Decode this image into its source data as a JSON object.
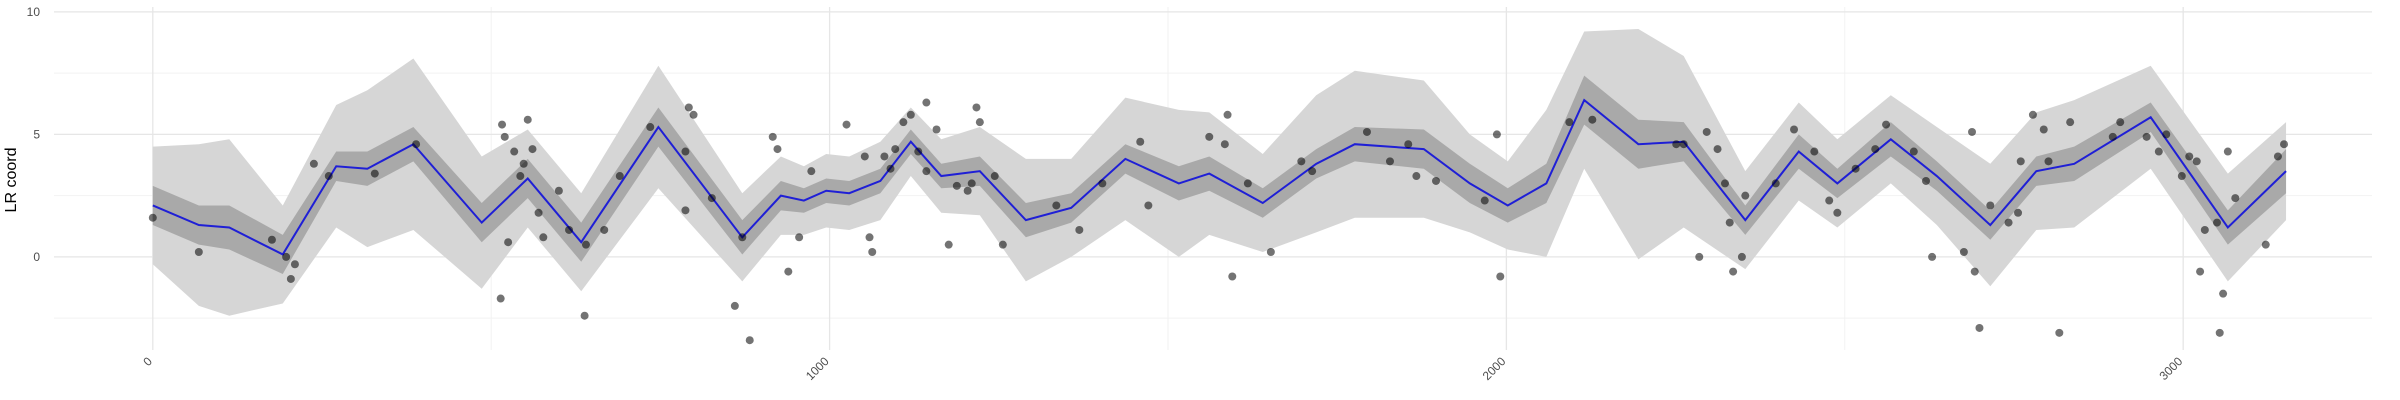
{
  "chart_data": {
    "type": "scatter",
    "y_label": "LR coord",
    "xlim": [
      -146,
      3279
    ],
    "ylim": [
      -3.8,
      10.2
    ],
    "xticks": [
      0,
      1000,
      2000,
      3000
    ],
    "yticks": [
      0,
      5,
      10
    ],
    "x_minor_ticks": [
      500,
      1500,
      2500
    ],
    "y_minor_ticks": [
      -2.5,
      2.5,
      7.5
    ],
    "grid": true,
    "smooth": {
      "color": "#1f1fd6",
      "x": [
        0,
        68,
        113,
        192,
        271,
        317,
        385,
        486,
        554,
        633,
        747,
        871,
        928,
        962,
        995,
        1029,
        1075,
        1120,
        1165,
        1222,
        1290,
        1357,
        1437,
        1516,
        1561,
        1640,
        1719,
        1776,
        1878,
        1946,
        2002,
        2059,
        2115,
        2195,
        2262,
        2353,
        2432,
        2489,
        2568,
        2636,
        2715,
        2783,
        2839,
        2952,
        3066,
        3152
      ],
      "mean": [
        2.1,
        1.3,
        1.2,
        0.1,
        3.7,
        3.6,
        4.6,
        1.4,
        3.2,
        0.6,
        5.3,
        0.8,
        2.5,
        2.3,
        2.7,
        2.6,
        3.1,
        4.7,
        3.3,
        3.5,
        1.5,
        2.0,
        4.0,
        3.0,
        3.4,
        2.2,
        3.8,
        4.6,
        4.4,
        3.0,
        2.1,
        3.0,
        6.4,
        4.6,
        4.7,
        1.5,
        4.3,
        3.0,
        4.8,
        3.3,
        1.3,
        3.5,
        3.8,
        5.7,
        1.2,
        3.5
      ],
      "outer_color": "#d6d6d6",
      "outer_lower": [
        -0.3,
        -2.0,
        -2.4,
        -1.9,
        1.2,
        0.4,
        1.1,
        -1.3,
        1.2,
        -1.4,
        2.8,
        -1.0,
        0.9,
        0.9,
        1.2,
        1.1,
        1.5,
        3.3,
        1.8,
        1.7,
        -1.0,
        0.0,
        1.5,
        0.0,
        0.9,
        0.2,
        1.0,
        1.6,
        1.6,
        1.0,
        0.3,
        0.0,
        3.6,
        -0.1,
        1.2,
        -0.5,
        2.3,
        1.2,
        3.0,
        1.3,
        -1.2,
        1.1,
        1.2,
        3.6,
        -1.0,
        1.5
      ],
      "outer_upper": [
        4.5,
        4.6,
        4.8,
        2.1,
        6.2,
        6.8,
        8.1,
        4.1,
        5.2,
        2.6,
        7.8,
        2.6,
        4.1,
        3.7,
        4.2,
        4.1,
        4.7,
        6.1,
        4.8,
        5.3,
        4.0,
        4.0,
        6.5,
        6.0,
        5.9,
        4.2,
        6.6,
        7.6,
        7.2,
        5.0,
        3.9,
        6.0,
        9.2,
        9.3,
        8.2,
        3.5,
        6.3,
        4.8,
        6.6,
        5.3,
        3.8,
        5.9,
        6.4,
        7.8,
        3.4,
        5.5
      ],
      "inner_color": "#a9a9a9",
      "inner_lower": [
        1.3,
        0.5,
        0.3,
        -0.7,
        3.1,
        2.9,
        3.9,
        0.6,
        2.4,
        -0.2,
        4.5,
        0.1,
        1.9,
        1.8,
        2.2,
        2.1,
        2.6,
        4.2,
        2.8,
        2.9,
        0.8,
        1.4,
        3.4,
        2.3,
        2.7,
        1.6,
        3.2,
        3.9,
        3.6,
        2.2,
        1.4,
        2.2,
        5.4,
        3.6,
        3.9,
        0.9,
        3.6,
        2.4,
        4.1,
        2.7,
        0.7,
        2.9,
        3.1,
        5.1,
        0.5,
        2.6
      ],
      "inner_upper": [
        2.9,
        2.1,
        2.1,
        0.9,
        4.3,
        4.3,
        5.3,
        2.2,
        4.0,
        1.4,
        6.1,
        1.5,
        3.1,
        2.8,
        3.2,
        3.1,
        3.6,
        5.2,
        3.8,
        4.1,
        2.2,
        2.6,
        4.6,
        3.7,
        4.1,
        2.8,
        4.4,
        5.3,
        5.2,
        3.8,
        2.8,
        3.8,
        7.4,
        5.6,
        5.5,
        2.1,
        5.0,
        3.6,
        5.5,
        3.9,
        1.9,
        4.1,
        4.5,
        6.3,
        1.9,
        4.4
      ]
    },
    "points": {
      "color": "#000000",
      "x": [
        0,
        68,
        176,
        197,
        204,
        210,
        238,
        260,
        328,
        389,
        516,
        520,
        514,
        525,
        534,
        543,
        548,
        554,
        561,
        570,
        577,
        600,
        615,
        638,
        640,
        667,
        690,
        735,
        792,
        799,
        787,
        787,
        826,
        860,
        882,
        871,
        916,
        923,
        939,
        955,
        973,
        1025,
        1052,
        1059,
        1063,
        1081,
        1090,
        1097,
        1109,
        1120,
        1131,
        1143,
        1143,
        1158,
        1176,
        1188,
        1204,
        1210,
        1217,
        1222,
        1244,
        1256,
        1335,
        1369,
        1403,
        1459,
        1471,
        1561,
        1588,
        1584,
        1595,
        1618,
        1652,
        1697,
        1713,
        1794,
        1828,
        1855,
        1867,
        1896,
        1968,
        1991,
        1986,
        2093,
        2127,
        2251,
        2262,
        2285,
        2296,
        2312,
        2323,
        2330,
        2335,
        2348,
        2353,
        2398,
        2425,
        2455,
        2477,
        2489,
        2516,
        2545,
        2561,
        2602,
        2620,
        2629,
        2676,
        2688,
        2692,
        2699,
        2715,
        2742,
        2756,
        2760,
        2778,
        2794,
        2801,
        2817,
        2833,
        2896,
        2907,
        2946,
        2964,
        2975,
        2998,
        3009,
        3020,
        3025,
        3032,
        3050,
        3054,
        3059,
        3066,
        3077,
        3122,
        3140,
        3149
      ],
      "y": [
        1.6,
        0.2,
        0.7,
        0.0,
        -0.9,
        -0.3,
        3.8,
        3.3,
        3.4,
        4.6,
        5.4,
        4.9,
        -1.7,
        0.6,
        4.3,
        3.3,
        3.8,
        5.6,
        4.4,
        1.8,
        0.8,
        2.7,
        1.1,
        -2.4,
        0.5,
        1.1,
        3.3,
        5.3,
        6.1,
        5.8,
        4.3,
        1.9,
        2.4,
        -2.0,
        -3.4,
        0.8,
        4.9,
        4.4,
        -0.6,
        0.8,
        3.5,
        5.4,
        4.1,
        0.8,
        0.2,
        4.1,
        3.6,
        4.4,
        5.5,
        5.8,
        4.3,
        3.5,
        6.3,
        5.2,
        0.5,
        2.9,
        2.7,
        3.0,
        6.1,
        5.5,
        3.3,
        0.5,
        2.1,
        1.1,
        3.0,
        4.7,
        2.1,
        4.9,
        5.8,
        4.6,
        -0.8,
        3.0,
        0.2,
        3.9,
        3.5,
        5.1,
        3.9,
        4.6,
        3.3,
        3.1,
        2.3,
        -0.8,
        5.0,
        5.5,
        5.6,
        4.6,
        4.6,
        0.0,
        5.1,
        4.4,
        3.0,
        1.4,
        -0.6,
        0.0,
        2.5,
        3.0,
        5.2,
        4.3,
        2.3,
        1.8,
        3.6,
        4.4,
        5.4,
        4.3,
        3.1,
        0.0,
        0.2,
        5.1,
        -0.6,
        -2.9,
        2.1,
        1.4,
        1.8,
        3.9,
        5.8,
        5.2,
        3.9,
        -3.1,
        5.5,
        4.9,
        5.5,
        4.9,
        4.3,
        5.0,
        3.3,
        4.1,
        3.9,
        -0.6,
        1.1,
        1.4,
        -3.1,
        -1.5,
        4.3,
        2.4,
        0.5,
        4.1,
        4.6
      ]
    }
  }
}
